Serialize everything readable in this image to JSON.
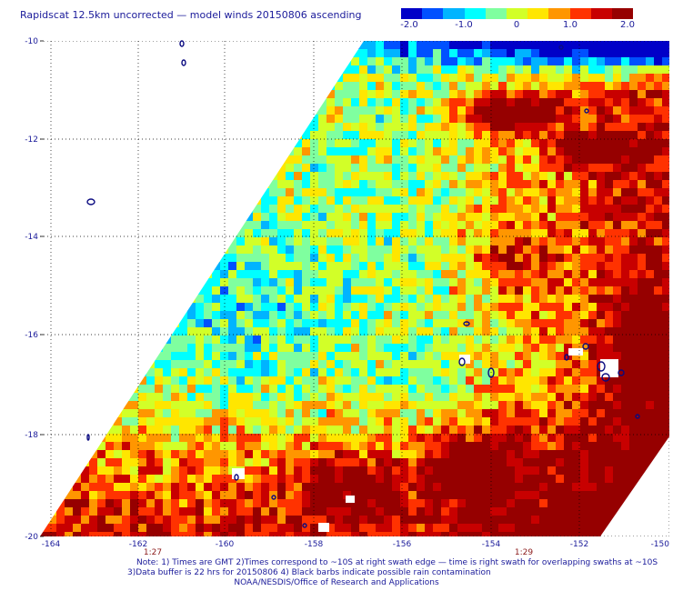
{
  "title": "Rapidscat 12.5km uncorrected — model winds 20150806 ascending",
  "colorbar": {
    "labels": [
      "-2.0",
      "-1.0",
      "0",
      "1.0",
      "2.0"
    ],
    "range": [
      -2.0,
      2.0
    ],
    "colors": [
      "#0000c8",
      "#0050ff",
      "#00b4ff",
      "#00ffff",
      "#7fff9f",
      "#d2ff28",
      "#ffe600",
      "#ff9600",
      "#ff3200",
      "#c80000",
      "#960000"
    ]
  },
  "axes": {
    "y_labels": [
      "-10",
      "-12",
      "-14",
      "-16",
      "-18",
      "-20"
    ],
    "x_labels": [
      "-164",
      "-162",
      "-160",
      "-158",
      "-156",
      "-154",
      "-152",
      "-150"
    ],
    "times": [
      "1:27",
      "1:29"
    ]
  },
  "notes": [
    "Note: 1) Times are GMT 2)Times correspond to ~10S at right swath edge — time is right swath for overlapping swaths at ~10S",
    "3)Data buffer is 22 hrs for 20150806 4) Black barbs indicate possible rain contamination",
    "NOAA/NESDIS/Office of Research and Applications"
  ]
}
